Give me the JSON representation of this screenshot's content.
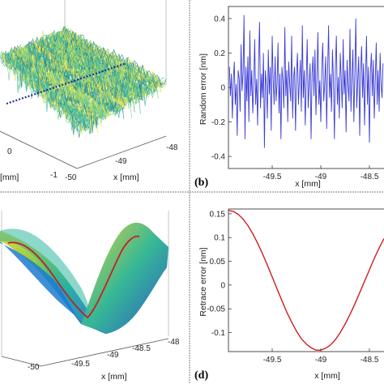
{
  "chart_data": [
    {
      "id": "a",
      "type": "surface",
      "xlabel": "x [mm]",
      "ylabel": "[mm]",
      "x_ticks": [
        "-50",
        "-49",
        "-48"
      ],
      "y_ticks": [
        "-1",
        "0"
      ],
      "colormap": [
        "#2c8a8f",
        "#3fb6a0",
        "#7fd27d",
        "#e6e34f"
      ],
      "line_color": "#1f2f9a"
    },
    {
      "id": "b",
      "type": "line",
      "panel_label": "(b)",
      "xlabel": "x [mm]",
      "ylabel": "Random error [nm]",
      "x_ticks": [
        "-49.5",
        "-49",
        "-48.5"
      ],
      "x_tick_values": [
        -49.5,
        -49,
        -48.5
      ],
      "y_ticks": [
        "0.4",
        "0.2",
        "0",
        "-0.2",
        "-0.4"
      ],
      "y_tick_values": [
        0.4,
        0.2,
        0,
        -0.2,
        -0.4
      ],
      "xlim": [
        -49.95,
        -48.35
      ],
      "ylim": [
        -0.47,
        0.47
      ],
      "color": "#3b3bd6",
      "x": [
        -49.94,
        -49.93,
        -49.92,
        -49.91,
        -49.9,
        -49.89,
        -49.88,
        -49.87,
        -49.86,
        -49.85,
        -49.84,
        -49.83,
        -49.82,
        -49.81,
        -49.8,
        -49.79,
        -49.78,
        -49.77,
        -49.76,
        -49.75,
        -49.74,
        -49.73,
        -49.72,
        -49.71,
        -49.7,
        -49.69,
        -49.68,
        -49.67,
        -49.66,
        -49.65,
        -49.64,
        -49.63,
        -49.62,
        -49.61,
        -49.6,
        -49.59,
        -49.58,
        -49.57,
        -49.56,
        -49.55,
        -49.54,
        -49.53,
        -49.52,
        -49.51,
        -49.5,
        -49.49,
        -49.48,
        -49.47,
        -49.46,
        -49.45,
        -49.44,
        -49.43,
        -49.42,
        -49.41,
        -49.4,
        -49.39,
        -49.38,
        -49.37,
        -49.36,
        -49.35,
        -49.34,
        -49.33,
        -49.32,
        -49.31,
        -49.3,
        -49.29,
        -49.28,
        -49.27,
        -49.26,
        -49.25,
        -49.24,
        -49.23,
        -49.22,
        -49.21,
        -49.2,
        -49.19,
        -49.18,
        -49.17,
        -49.16,
        -49.15,
        -49.14,
        -49.13,
        -49.12,
        -49.11,
        -49.1,
        -49.09,
        -49.08,
        -49.07,
        -49.06,
        -49.05,
        -49.04,
        -49.03,
        -49.02,
        -49.01,
        -49.0,
        -48.99,
        -48.98,
        -48.97,
        -48.96,
        -48.95,
        -48.94,
        -48.93,
        -48.92,
        -48.91,
        -48.9,
        -48.89,
        -48.88,
        -48.87,
        -48.86,
        -48.85,
        -48.84,
        -48.83,
        -48.82,
        -48.81,
        -48.8,
        -48.79,
        -48.78,
        -48.77,
        -48.76,
        -48.75,
        -48.74,
        -48.73,
        -48.72,
        -48.71,
        -48.7,
        -48.69,
        -48.68,
        -48.67,
        -48.66,
        -48.65,
        -48.64,
        -48.63,
        -48.62,
        -48.61,
        -48.6,
        -48.59,
        -48.58,
        -48.57,
        -48.56,
        -48.55,
        -48.54,
        -48.53,
        -48.52,
        -48.51,
        -48.5,
        -48.49,
        -48.48,
        -48.47,
        -48.46,
        -48.45,
        -48.44,
        -48.43,
        -48.42,
        -48.41,
        -48.4,
        -48.39,
        -48.38,
        -48.37,
        -48.36
      ],
      "y": [
        0.12,
        -0.05,
        0.08,
        -0.18,
        0.04,
        0.15,
        -0.1,
        0.02,
        -0.28,
        0.1,
        0.05,
        -0.14,
        0.25,
        -0.02,
        0.08,
        0.42,
        -0.3,
        0.12,
        -0.08,
        0.18,
        -0.2,
        0.33,
        -0.05,
        0.1,
        -0.15,
        0.02,
        0.28,
        -0.1,
        0.05,
        -0.22,
        0.15,
        0.38,
        -0.12,
        0.08,
        -0.06,
        0.2,
        -0.35,
        0.1,
        0.02,
        -0.18,
        0.22,
        -0.04,
        0.12,
        -0.25,
        0.3,
        0.05,
        -0.1,
        0.18,
        -0.08,
        0.02,
        0.26,
        -0.15,
        0.08,
        -0.3,
        0.12,
        0.04,
        -0.12,
        0.35,
        -0.05,
        0.1,
        -0.2,
        0.15,
        0.02,
        -0.08,
        0.3,
        -0.18,
        0.06,
        0.12,
        -0.25,
        0.08,
        0.2,
        -0.1,
        0.04,
        0.16,
        -0.14,
        0.36,
        -0.06,
        0.1,
        -0.22,
        0.05,
        0.28,
        -0.12,
        0.02,
        0.14,
        -0.3,
        0.08,
        0.18,
        -0.05,
        0.22,
        -0.16,
        0.06,
        0.32,
        -0.1,
        0.04,
        -0.2,
        0.12,
        0.26,
        -0.08,
        0.02,
        0.18,
        -0.24,
        0.1,
        0.36,
        -0.06,
        0.08,
        -0.14,
        0.22,
        0.04,
        -0.3,
        0.12,
        0.3,
        -0.1,
        0.06,
        -0.18,
        0.2,
        0.05,
        -0.12,
        0.28,
        -0.04,
        0.1,
        -0.26,
        0.16,
        0.02,
        -0.08,
        0.34,
        -0.14,
        0.06,
        0.22,
        -0.2,
        0.08,
        0.4,
        -0.12,
        0.04,
        0.18,
        -0.28,
        0.1,
        0.24,
        -0.06,
        0.14,
        -0.22,
        0.06,
        0.3,
        -0.1,
        0.12,
        -0.32,
        0.08,
        0.2,
        -0.05,
        0.16,
        -0.18,
        0.04,
        0.26,
        -0.1,
        0.1,
        -0.14,
        0.2,
        0.02,
        -0.06,
        0.14
      ]
    },
    {
      "id": "c",
      "type": "surface",
      "xlabel": "x [mm]",
      "x_ticks": [
        "-50",
        "-49.5",
        "-49",
        "-48.5",
        "-48"
      ],
      "colormap": [
        "#3a2a8f",
        "#2a6fd8",
        "#1aa3c8",
        "#3fc08a",
        "#b8d040",
        "#f4d835"
      ],
      "line_color": "#c81e1e"
    },
    {
      "id": "d",
      "type": "line",
      "panel_label": "(d)",
      "xlabel": "x [mm]",
      "ylabel": "Retrace error [nm]",
      "x_ticks": [
        "-49.5",
        "-49",
        "-48.5"
      ],
      "x_tick_values": [
        -49.5,
        -49,
        -48.5
      ],
      "y_ticks": [
        "0.15",
        "0.1",
        "0.05",
        "0",
        "-0.05",
        "-0.1"
      ],
      "y_tick_values": [
        0.15,
        0.1,
        0.05,
        0,
        -0.05,
        -0.1
      ],
      "xlim": [
        -49.95,
        -48.35
      ],
      "ylim": [
        -0.14,
        0.16
      ],
      "color": "#cc1f1f",
      "x": [
        -49.95,
        -49.9,
        -49.85,
        -49.8,
        -49.75,
        -49.7,
        -49.65,
        -49.6,
        -49.55,
        -49.5,
        -49.45,
        -49.4,
        -49.35,
        -49.3,
        -49.25,
        -49.2,
        -49.15,
        -49.1,
        -49.05,
        -49.0,
        -48.95,
        -48.9,
        -48.85,
        -48.8,
        -48.75,
        -48.7,
        -48.65,
        -48.6,
        -48.55,
        -48.5,
        -48.45,
        -48.4,
        -48.35
      ],
      "y": [
        0.157,
        0.155,
        0.149,
        0.139,
        0.125,
        0.108,
        0.088,
        0.066,
        0.042,
        0.017,
        -0.008,
        -0.033,
        -0.057,
        -0.078,
        -0.097,
        -0.113,
        -0.124,
        -0.132,
        -0.137,
        -0.137,
        -0.133,
        -0.126,
        -0.115,
        -0.1,
        -0.082,
        -0.062,
        -0.04,
        -0.016,
        0.008,
        0.032,
        0.056,
        0.078,
        0.098
      ]
    }
  ]
}
